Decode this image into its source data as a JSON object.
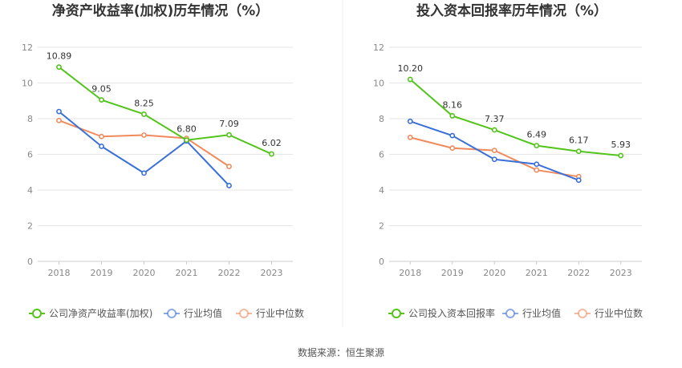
{
  "source": "数据来源：恒生聚源",
  "colors": {
    "company": "#52c41a",
    "avg": "#3a6fd8",
    "median": "#f08a5d",
    "grid": "#e6e6e6",
    "axis": "#cccccc"
  },
  "chart_data": [
    {
      "type": "line",
      "title": "净资产收益率(加权)历年情况（%）",
      "categories": [
        "2018",
        "2019",
        "2020",
        "2021",
        "2022",
        "2023"
      ],
      "ylim": [
        0,
        12
      ],
      "yticks": [
        "0",
        "2",
        "4",
        "6",
        "8",
        "10",
        "12"
      ],
      "grid": true,
      "legend_position": "bottom",
      "series": [
        {
          "name": "公司净资产收益率(加权)",
          "color": "#52c41a",
          "values": [
            10.89,
            9.05,
            8.25,
            6.8,
            7.09,
            6.02
          ],
          "labels": [
            "10.89",
            "9.05",
            "8.25",
            "6.80",
            "7.09",
            "6.02"
          ]
        },
        {
          "name": "行业均值",
          "color": "#3a6fd8",
          "values": [
            8.4,
            6.45,
            4.95,
            6.75,
            4.25,
            null
          ]
        },
        {
          "name": "行业中位数",
          "color": "#f08a5d",
          "values": [
            7.9,
            7.0,
            7.08,
            6.9,
            5.32,
            null
          ]
        }
      ]
    },
    {
      "type": "line",
      "title": "投入资本回报率历年情况（%）",
      "categories": [
        "2018",
        "2019",
        "2020",
        "2021",
        "2022",
        "2023"
      ],
      "ylim": [
        0,
        12
      ],
      "yticks": [
        "0",
        "2",
        "4",
        "6",
        "8",
        "10",
        "12"
      ],
      "grid": true,
      "legend_position": "bottom",
      "series": [
        {
          "name": "公司投入资本回报率",
          "color": "#52c41a",
          "values": [
            10.2,
            8.16,
            7.37,
            6.49,
            6.17,
            5.93
          ],
          "labels": [
            "10.20",
            "8.16",
            "7.37",
            "6.49",
            "6.17",
            "5.93"
          ]
        },
        {
          "name": "行业均值",
          "color": "#3a6fd8",
          "values": [
            7.85,
            7.05,
            5.72,
            5.45,
            4.55,
            null
          ]
        },
        {
          "name": "行业中位数",
          "color": "#f08a5d",
          "values": [
            6.95,
            6.35,
            6.22,
            5.12,
            4.75,
            null
          ]
        }
      ]
    }
  ]
}
